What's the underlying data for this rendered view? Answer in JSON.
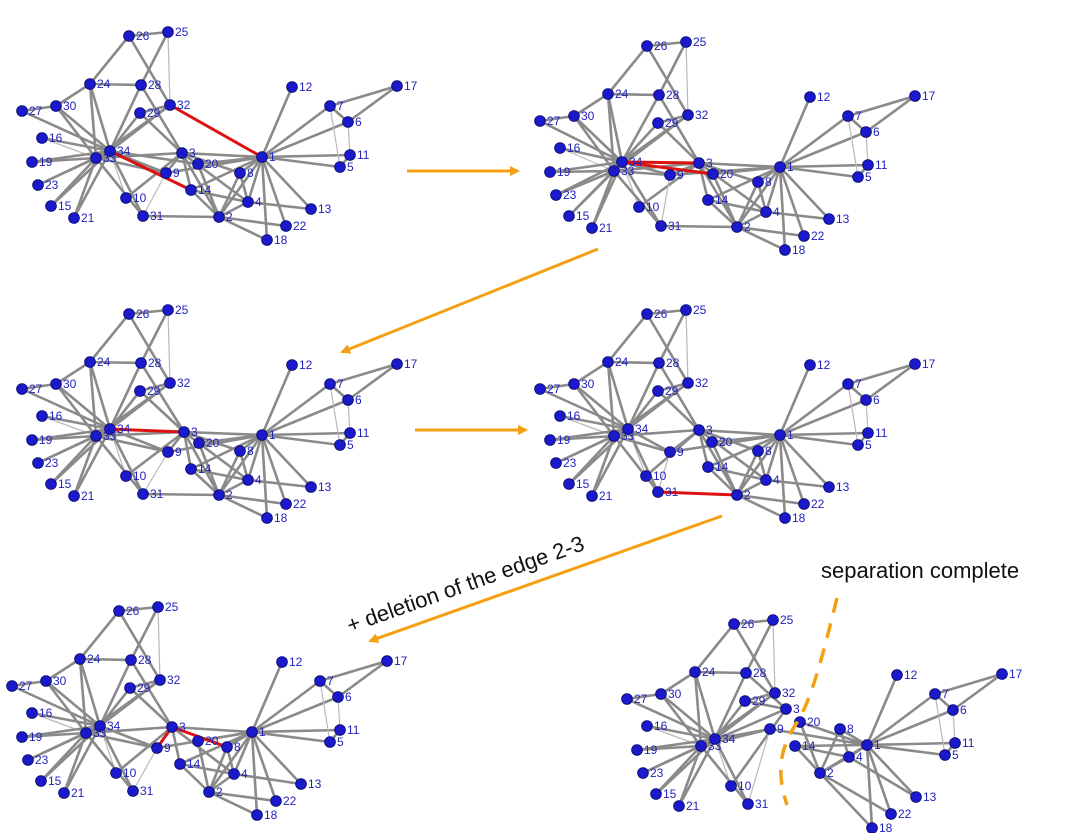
{
  "colors": {
    "node": "#1a1acc",
    "node_stroke": "#0a0a66",
    "edge": "#8a8a8a",
    "edge_light": "#b9b9b9",
    "highlight": "#dd1111",
    "arrow": "#f5a012",
    "label": "#2222bb"
  },
  "captions": {
    "deletion": "+ deletion of the edge 2-3",
    "complete": "separation complete"
  },
  "nodes": [
    "1",
    "2",
    "3",
    "4",
    "5",
    "6",
    "7",
    "8",
    "9",
    "10",
    "11",
    "12",
    "13",
    "14",
    "15",
    "16",
    "17",
    "18",
    "19",
    "20",
    "21",
    "22",
    "23",
    "24",
    "25",
    "26",
    "27",
    "28",
    "29",
    "30",
    "31",
    "32",
    "33",
    "34"
  ],
  "edges": [
    [
      "1",
      "2"
    ],
    [
      "1",
      "3"
    ],
    [
      "1",
      "4"
    ],
    [
      "1",
      "5"
    ],
    [
      "1",
      "6"
    ],
    [
      "1",
      "7"
    ],
    [
      "1",
      "8"
    ],
    [
      "1",
      "9"
    ],
    [
      "1",
      "11"
    ],
    [
      "1",
      "12"
    ],
    [
      "1",
      "13"
    ],
    [
      "1",
      "14"
    ],
    [
      "1",
      "18"
    ],
    [
      "1",
      "20"
    ],
    [
      "1",
      "22"
    ],
    [
      "1",
      "32"
    ],
    [
      "2",
      "3"
    ],
    [
      "2",
      "4"
    ],
    [
      "2",
      "8"
    ],
    [
      "2",
      "14"
    ],
    [
      "2",
      "18"
    ],
    [
      "2",
      "20"
    ],
    [
      "2",
      "22"
    ],
    [
      "2",
      "31"
    ],
    [
      "3",
      "4"
    ],
    [
      "3",
      "8"
    ],
    [
      "3",
      "9"
    ],
    [
      "3",
      "10"
    ],
    [
      "3",
      "14"
    ],
    [
      "3",
      "28"
    ],
    [
      "3",
      "29"
    ],
    [
      "3",
      "33"
    ],
    [
      "4",
      "8"
    ],
    [
      "4",
      "13"
    ],
    [
      "4",
      "14"
    ],
    [
      "5",
      "7"
    ],
    [
      "5",
      "11"
    ],
    [
      "6",
      "7"
    ],
    [
      "6",
      "11"
    ],
    [
      "6",
      "17"
    ],
    [
      "7",
      "17"
    ],
    [
      "9",
      "31"
    ],
    [
      "9",
      "33"
    ],
    [
      "9",
      "34"
    ],
    [
      "10",
      "34"
    ],
    [
      "14",
      "34"
    ],
    [
      "15",
      "33"
    ],
    [
      "15",
      "34"
    ],
    [
      "16",
      "33"
    ],
    [
      "16",
      "34"
    ],
    [
      "19",
      "33"
    ],
    [
      "19",
      "34"
    ],
    [
      "20",
      "34"
    ],
    [
      "21",
      "33"
    ],
    [
      "21",
      "34"
    ],
    [
      "23",
      "33"
    ],
    [
      "23",
      "34"
    ],
    [
      "24",
      "26"
    ],
    [
      "24",
      "28"
    ],
    [
      "24",
      "30"
    ],
    [
      "24",
      "33"
    ],
    [
      "24",
      "34"
    ],
    [
      "25",
      "26"
    ],
    [
      "25",
      "28"
    ],
    [
      "25",
      "32"
    ],
    [
      "26",
      "32"
    ],
    [
      "27",
      "30"
    ],
    [
      "27",
      "34"
    ],
    [
      "28",
      "34"
    ],
    [
      "29",
      "32"
    ],
    [
      "29",
      "34"
    ],
    [
      "30",
      "33"
    ],
    [
      "30",
      "34"
    ],
    [
      "31",
      "33"
    ],
    [
      "31",
      "34"
    ],
    [
      "32",
      "33"
    ],
    [
      "32",
      "34"
    ],
    [
      "33",
      "34"
    ]
  ],
  "panels": [
    {
      "id": "step-1",
      "highlight": [
        [
          "32",
          "1"
        ],
        [
          "14",
          "34"
        ]
      ],
      "removed": []
    },
    {
      "id": "step-2",
      "highlight": [
        [
          "20",
          "34"
        ],
        [
          "3",
          "34"
        ]
      ],
      "removed": [
        [
          "1",
          "32"
        ],
        [
          "14",
          "34"
        ]
      ]
    },
    {
      "id": "step-3",
      "highlight": [
        [
          "3",
          "34"
        ]
      ],
      "removed": [
        [
          "1",
          "32"
        ],
        [
          "14",
          "34"
        ],
        [
          "20",
          "34"
        ]
      ]
    },
    {
      "id": "step-4",
      "highlight": [
        [
          "2",
          "31"
        ]
      ],
      "removed": [
        [
          "1",
          "32"
        ],
        [
          "14",
          "34"
        ],
        [
          "20",
          "34"
        ],
        [
          "3",
          "34"
        ]
      ]
    },
    {
      "id": "step-5",
      "highlight": [
        [
          "3",
          "9"
        ],
        [
          "3",
          "8"
        ]
      ],
      "removed": [
        [
          "1",
          "32"
        ],
        [
          "14",
          "34"
        ],
        [
          "20",
          "34"
        ],
        [
          "3",
          "34"
        ],
        [
          "2",
          "31"
        ],
        [
          "2",
          "3"
        ]
      ]
    },
    {
      "id": "step-6",
      "highlight": [],
      "removed": [
        [
          "1",
          "32"
        ],
        [
          "14",
          "34"
        ],
        [
          "20",
          "34"
        ],
        [
          "3",
          "34"
        ],
        [
          "2",
          "31"
        ],
        [
          "2",
          "3"
        ],
        [
          "3",
          "9"
        ],
        [
          "3",
          "8"
        ],
        [
          "3",
          "4"
        ],
        [
          "3",
          "14"
        ],
        [
          "1",
          "3"
        ]
      ]
    }
  ]
}
